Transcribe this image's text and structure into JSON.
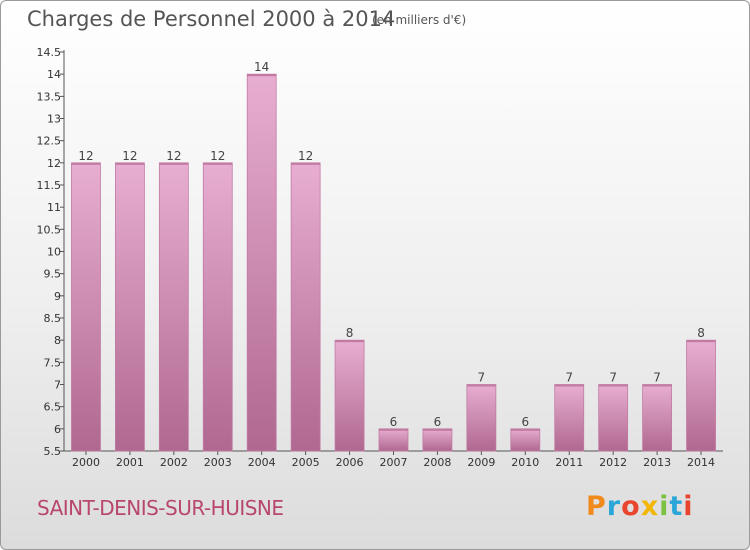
{
  "header": {
    "title": "Charges de Personnel 2000 à 2014",
    "subtitle": "(en milliers d'€)"
  },
  "footer": {
    "commune": "SAINT-DENIS-SUR-HUISNE",
    "logo_letters": [
      "P",
      "r",
      "o",
      "x",
      "i",
      "t",
      "i"
    ],
    "logo_colors": [
      "#f08a1c",
      "#2aa6d8",
      "#e8442e",
      "#f2b705",
      "#7cc242",
      "#2aa6d8",
      "#e8442e"
    ]
  },
  "colors": {
    "bar_top": "#e8aed2",
    "bar_bottom": "#b06890",
    "bar_side": "#c17ba3",
    "commune_text": "#b8466e"
  },
  "chart_data": {
    "type": "bar",
    "categories": [
      "2000",
      "2001",
      "2002",
      "2003",
      "2004",
      "2005",
      "2006",
      "2007",
      "2008",
      "2009",
      "2010",
      "2011",
      "2012",
      "2013",
      "2014"
    ],
    "values": [
      12,
      12,
      12,
      12,
      14,
      12,
      8,
      6,
      6,
      7,
      6,
      7,
      7,
      7,
      8
    ],
    "data_labels": [
      "12",
      "12",
      "12",
      "12",
      "14",
      "12",
      "8",
      "6",
      "6",
      "7",
      "6",
      "7",
      "7",
      "7",
      "8"
    ],
    "y_ticks": [
      5.5,
      6,
      6.5,
      7,
      7.5,
      8,
      8.5,
      9,
      9.5,
      10,
      10.5,
      11,
      11.5,
      12,
      12.5,
      13,
      13.5,
      14,
      14.5
    ],
    "y_tick_labels": [
      "5.5",
      "6",
      "6.5",
      "7",
      "7.5",
      "8",
      "8.5",
      "9",
      "9.5",
      "10",
      "10.5",
      "11",
      "11.5",
      "12",
      "12.5",
      "13",
      "13.5",
      "14",
      "14.5"
    ],
    "ylim": [
      5.5,
      14.5
    ],
    "xlabel": "",
    "ylabel": "",
    "grid": false,
    "legend": "none"
  }
}
